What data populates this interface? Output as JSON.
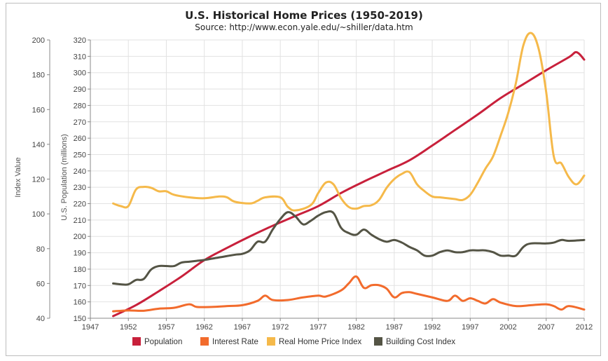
{
  "chart_data": {
    "type": "line",
    "title": "U.S. Historical Home Prices (1950-2019)",
    "subtitle": "Source: http://www.econ.yale.edu/~shiller/data.htm",
    "x_axis": {
      "min": 1947,
      "max": 2012,
      "ticks": [
        1947,
        1952,
        1957,
        1962,
        1967,
        1972,
        1977,
        1982,
        1987,
        1992,
        1997,
        2002,
        2007,
        2012
      ]
    },
    "y_left": {
      "label": "Index Value",
      "min": 40,
      "max": 200,
      "ticks": [
        40,
        60,
        80,
        100,
        120,
        140,
        160,
        180,
        200
      ]
    },
    "y_right": {
      "label": "U.S. Population (millions)",
      "min": 150,
      "max": 320,
      "ticks": [
        150,
        160,
        170,
        180,
        190,
        200,
        210,
        220,
        230,
        240,
        250,
        260,
        270,
        280,
        290,
        300,
        310,
        320
      ]
    },
    "grid": true,
    "legend_position": "bottom",
    "series": [
      {
        "name": "Population",
        "color": "#c8203b",
        "axis": "right",
        "points": [
          [
            1950,
            151.3
          ],
          [
            1953,
            158
          ],
          [
            1956,
            166.5
          ],
          [
            1959,
            175.5
          ],
          [
            1962,
            185.5
          ],
          [
            1965,
            193
          ],
          [
            1968,
            200
          ],
          [
            1971,
            206.5
          ],
          [
            1974,
            212.5
          ],
          [
            1977,
            218.5
          ],
          [
            1980,
            226.5
          ],
          [
            1983,
            233.5
          ],
          [
            1986,
            240
          ],
          [
            1989,
            246.5
          ],
          [
            1992,
            255.5
          ],
          [
            1995,
            265
          ],
          [
            1998,
            274.5
          ],
          [
            2001,
            284.5
          ],
          [
            2004,
            293
          ],
          [
            2007,
            301.5
          ],
          [
            2010,
            309.5
          ],
          [
            2011,
            312.5
          ],
          [
            2012,
            308
          ]
        ]
      },
      {
        "name": "Interest Rate",
        "color": "#f26b2c",
        "axis": "left",
        "points": [
          [
            1950,
            44
          ],
          [
            1952,
            44.5
          ],
          [
            1954,
            44.3
          ],
          [
            1956,
            45.5
          ],
          [
            1958,
            46
          ],
          [
            1960,
            48
          ],
          [
            1961,
            46.5
          ],
          [
            1963,
            46.5
          ],
          [
            1965,
            47
          ],
          [
            1967,
            47.5
          ],
          [
            1969,
            50
          ],
          [
            1970,
            53
          ],
          [
            1971,
            50.5
          ],
          [
            1973,
            50.5
          ],
          [
            1975,
            52
          ],
          [
            1977,
            53
          ],
          [
            1978,
            52.5
          ],
          [
            1980,
            56
          ],
          [
            1981,
            60
          ],
          [
            1982,
            64
          ],
          [
            1983,
            57.5
          ],
          [
            1984,
            59
          ],
          [
            1985,
            59
          ],
          [
            1986,
            57
          ],
          [
            1987,
            52
          ],
          [
            1988,
            54.5
          ],
          [
            1989,
            55
          ],
          [
            1990,
            54
          ],
          [
            1992,
            52
          ],
          [
            1994,
            50
          ],
          [
            1995,
            53
          ],
          [
            1996,
            50
          ],
          [
            1997,
            51.5
          ],
          [
            1998,
            50
          ],
          [
            1999,
            48.5
          ],
          [
            2000,
            51
          ],
          [
            2001,
            49
          ],
          [
            2003,
            47
          ],
          [
            2005,
            47.5
          ],
          [
            2007,
            48
          ],
          [
            2008,
            47
          ],
          [
            2009,
            45
          ],
          [
            2010,
            47
          ],
          [
            2012,
            45
          ]
        ]
      },
      {
        "name": "Real Home Price Index",
        "color": "#f5b94a",
        "axis": "left",
        "points": [
          [
            1950,
            106
          ],
          [
            1951,
            104.5
          ],
          [
            1952,
            104.5
          ],
          [
            1953,
            114
          ],
          [
            1954,
            115.5
          ],
          [
            1955,
            115
          ],
          [
            1956,
            113
          ],
          [
            1957,
            113
          ],
          [
            1958,
            111
          ],
          [
            1960,
            109.5
          ],
          [
            1962,
            109
          ],
          [
            1964,
            110
          ],
          [
            1965,
            109.5
          ],
          [
            1966,
            107
          ],
          [
            1968,
            106
          ],
          [
            1969,
            107.5
          ],
          [
            1970,
            109.5
          ],
          [
            1972,
            109.5
          ],
          [
            1973,
            104
          ],
          [
            1974,
            102
          ],
          [
            1976,
            105
          ],
          [
            1977,
            112
          ],
          [
            1978,
            118
          ],
          [
            1979,
            117
          ],
          [
            1980,
            109
          ],
          [
            1981,
            104
          ],
          [
            1982,
            103
          ],
          [
            1983,
            104.5
          ],
          [
            1984,
            105
          ],
          [
            1985,
            108
          ],
          [
            1986,
            115
          ],
          [
            1987,
            120
          ],
          [
            1988,
            123
          ],
          [
            1989,
            124
          ],
          [
            1990,
            117
          ],
          [
            1991,
            113
          ],
          [
            1992,
            110
          ],
          [
            1993,
            109.5
          ],
          [
            1994,
            109
          ],
          [
            1995,
            108.5
          ],
          [
            1996,
            108
          ],
          [
            1997,
            111
          ],
          [
            1998,
            118
          ],
          [
            1999,
            126
          ],
          [
            2000,
            133
          ],
          [
            2001,
            145
          ],
          [
            2002,
            158
          ],
          [
            2003,
            175
          ],
          [
            2004,
            197
          ],
          [
            2005,
            204
          ],
          [
            2006,
            195
          ],
          [
            2007,
            170
          ],
          [
            2008,
            133
          ],
          [
            2009,
            129
          ],
          [
            2010,
            121
          ],
          [
            2011,
            117
          ],
          [
            2012,
            122
          ]
        ]
      },
      {
        "name": "Building Cost Index",
        "color": "#545445",
        "axis": "left",
        "points": [
          [
            1950,
            60
          ],
          [
            1951,
            59.5
          ],
          [
            1952,
            59.5
          ],
          [
            1953,
            62
          ],
          [
            1954,
            62.5
          ],
          [
            1955,
            68
          ],
          [
            1956,
            70
          ],
          [
            1957,
            70
          ],
          [
            1958,
            70
          ],
          [
            1959,
            72
          ],
          [
            1960,
            72.5
          ],
          [
            1961,
            73
          ],
          [
            1962,
            73.5
          ],
          [
            1964,
            75
          ],
          [
            1966,
            76.5
          ],
          [
            1967,
            77
          ],
          [
            1968,
            79
          ],
          [
            1969,
            84
          ],
          [
            1970,
            84
          ],
          [
            1971,
            91
          ],
          [
            1972,
            97
          ],
          [
            1973,
            101
          ],
          [
            1974,
            98.5
          ],
          [
            1975,
            94
          ],
          [
            1976,
            96
          ],
          [
            1977,
            99
          ],
          [
            1978,
            101
          ],
          [
            1979,
            100.5
          ],
          [
            1980,
            92
          ],
          [
            1981,
            89
          ],
          [
            1982,
            88
          ],
          [
            1983,
            91
          ],
          [
            1984,
            88
          ],
          [
            1985,
            85.5
          ],
          [
            1986,
            84
          ],
          [
            1987,
            85
          ],
          [
            1988,
            83.5
          ],
          [
            1989,
            81
          ],
          [
            1990,
            79
          ],
          [
            1991,
            76
          ],
          [
            1992,
            76
          ],
          [
            1993,
            78
          ],
          [
            1994,
            79
          ],
          [
            1995,
            78
          ],
          [
            1996,
            78
          ],
          [
            1997,
            79
          ],
          [
            1998,
            79
          ],
          [
            1999,
            79
          ],
          [
            2000,
            78
          ],
          [
            2001,
            76
          ],
          [
            2002,
            76
          ],
          [
            2003,
            76
          ],
          [
            2004,
            81
          ],
          [
            2005,
            83
          ],
          [
            2007,
            83
          ],
          [
            2008,
            83.5
          ],
          [
            2009,
            85
          ],
          [
            2010,
            84.5
          ],
          [
            2012,
            85
          ]
        ]
      }
    ]
  }
}
